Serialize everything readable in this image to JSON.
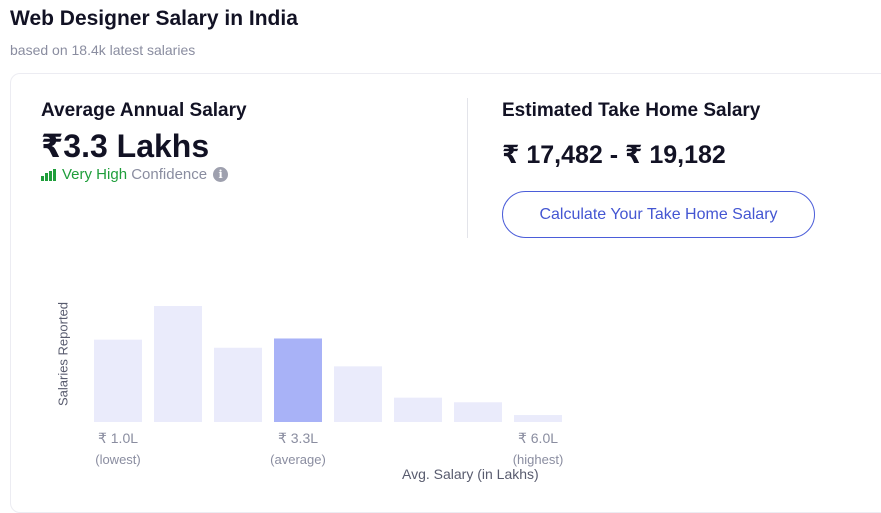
{
  "header": {
    "title": "Web Designer Salary in India",
    "subtitle": "based on 18.4k latest salaries"
  },
  "average": {
    "heading": "Average Annual Salary",
    "value": "₹3.3 Lakhs",
    "confidence_level": "Very High",
    "confidence_word": "Confidence",
    "info_glyph": "i",
    "icon": "signal-bars-icon",
    "confidence_color": "#1f9e3b"
  },
  "take_home": {
    "heading": "Estimated Take Home Salary",
    "value": "₹ 17,482 - ₹ 19,182",
    "button_label": "Calculate Your Take Home Salary",
    "accent_color": "#4456d2"
  },
  "chart_data": {
    "type": "bar",
    "ylabel": "Salaries Reported",
    "xlabel": "Avg. Salary (in Lakhs)",
    "values": [
      0.71,
      1.0,
      0.64,
      0.72,
      0.48,
      0.21,
      0.17,
      0.06
    ],
    "highlight_index": 3,
    "bar_color": "#eaebfb",
    "highlight_color": "#a8b2f7",
    "tick_labels": [
      {
        "bar_index": 0,
        "label": "₹ 1.0L",
        "sub": "(lowest)"
      },
      {
        "bar_index": 3,
        "label": "₹ 3.3L",
        "sub": "(average)"
      },
      {
        "bar_index": 7,
        "label": "₹ 6.0L",
        "sub": "(highest)"
      }
    ]
  }
}
